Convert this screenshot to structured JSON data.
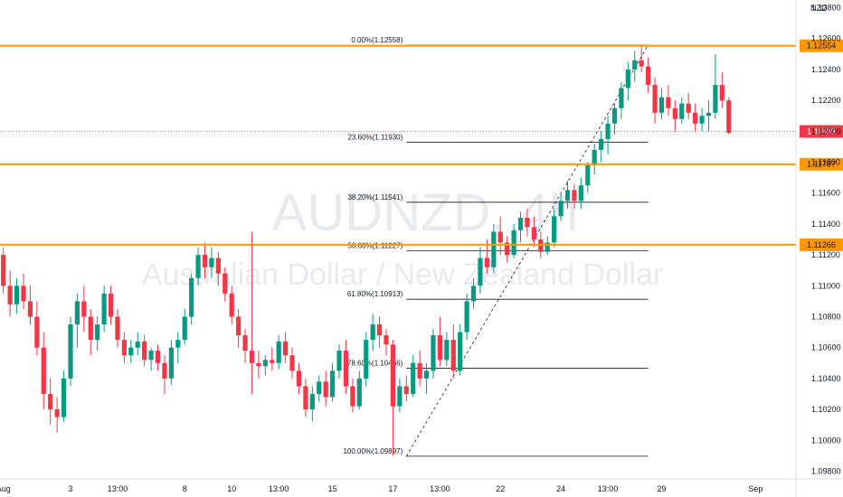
{
  "chart_data": {
    "type": "candlestick",
    "watermark": {
      "symbol": "AUDNZD, 4h",
      "name": "Australian Dollar / New Zealand Dollar"
    },
    "currency_label": "NZD",
    "y_ticks": [
      "1.12800",
      "1.12600",
      "1.12400",
      "1.12200",
      "1.12000",
      "1.11800",
      "1.11600",
      "1.11400",
      "1.11200",
      "1.11000",
      "1.10800",
      "1.10600",
      "1.10400",
      "1.10200",
      "1.10000",
      "1.09800"
    ],
    "y_tick_values": [
      1.128,
      1.126,
      1.124,
      1.122,
      1.12,
      1.118,
      1.116,
      1.114,
      1.112,
      1.11,
      1.108,
      1.106,
      1.104,
      1.102,
      1.1,
      1.098
    ],
    "x_ticks": [
      "Aug",
      "3",
      "13:00",
      "8",
      "10",
      "13:00",
      "15",
      "17",
      "13:00",
      "22",
      "24",
      "13:00",
      "29",
      "Sep"
    ],
    "x_tick_index": [
      0,
      10,
      17,
      27,
      34,
      41,
      49,
      58,
      65,
      74,
      83,
      90,
      98,
      112
    ],
    "ylim": [
      1.0975,
      1.1285
    ],
    "xlim": [
      -0.5,
      118
    ],
    "horizontal_levels": [
      {
        "label": "1.12554",
        "value": 1.12554
      },
      {
        "label": "1.11787",
        "value": 1.11787
      },
      {
        "label": "1.11266",
        "value": 1.11266
      }
    ],
    "last_price": {
      "label": "1.11999",
      "value": 1.11999
    },
    "fibonacci": {
      "x_start_index": 60,
      "x_end_index": 96,
      "levels": [
        {
          "label": "0.00%(1.12558)",
          "value": 1.12558
        },
        {
          "label": "23.60%(1.11930)",
          "value": 1.1193
        },
        {
          "label": "38.20%(1.11541)",
          "value": 1.11541
        },
        {
          "label": "50.00%(1.11227)",
          "value": 1.11227
        },
        {
          "label": "61.80%(1.10913)",
          "value": 1.10913
        },
        {
          "label": "78.60%(1.10466)",
          "value": 1.10466
        },
        {
          "label": "100.00%(1.09897)",
          "value": 1.09897
        }
      ]
    },
    "candles": [
      [
        1.112,
        1.1125,
        1.1095,
        1.11
      ],
      [
        1.11,
        1.111,
        1.108,
        1.1088
      ],
      [
        1.1088,
        1.1105,
        1.1082,
        1.11
      ],
      [
        1.11,
        1.1108,
        1.1085,
        1.109
      ],
      [
        1.109,
        1.11,
        1.1075,
        1.108
      ],
      [
        1.108,
        1.109,
        1.1055,
        1.106
      ],
      [
        1.106,
        1.107,
        1.102,
        1.103
      ],
      [
        1.103,
        1.104,
        1.101,
        1.102
      ],
      [
        1.102,
        1.1028,
        1.1005,
        1.1015
      ],
      [
        1.1015,
        1.1045,
        1.1012,
        1.104
      ],
      [
        1.104,
        1.108,
        1.1035,
        1.1075
      ],
      [
        1.1075,
        1.1095,
        1.106,
        1.109
      ],
      [
        1.109,
        1.11,
        1.107,
        1.108
      ],
      [
        1.108,
        1.1085,
        1.1055,
        1.1065
      ],
      [
        1.1065,
        1.108,
        1.1058,
        1.1075
      ],
      [
        1.1075,
        1.11,
        1.107,
        1.1095
      ],
      [
        1.1095,
        1.11,
        1.1075,
        1.108
      ],
      [
        1.108,
        1.1085,
        1.106,
        1.1065
      ],
      [
        1.1065,
        1.107,
        1.105,
        1.1055
      ],
      [
        1.1055,
        1.1065,
        1.105,
        1.106
      ],
      [
        1.106,
        1.107,
        1.1055,
        1.1064
      ],
      [
        1.1064,
        1.1068,
        1.1048,
        1.1052
      ],
      [
        1.1052,
        1.106,
        1.1045,
        1.1058
      ],
      [
        1.1058,
        1.1062,
        1.1045,
        1.105
      ],
      [
        1.105,
        1.1055,
        1.103,
        1.104
      ],
      [
        1.104,
        1.1065,
        1.1036,
        1.106
      ],
      [
        1.106,
        1.107,
        1.105,
        1.1065
      ],
      [
        1.1065,
        1.1085,
        1.1062,
        1.108
      ],
      [
        1.108,
        1.1108,
        1.1075,
        1.1105
      ],
      [
        1.1105,
        1.1125,
        1.11,
        1.112
      ],
      [
        1.112,
        1.1128,
        1.1105,
        1.1112
      ],
      [
        1.1112,
        1.1125,
        1.1105,
        1.1118
      ],
      [
        1.1118,
        1.1122,
        1.11,
        1.1108
      ],
      [
        1.1108,
        1.1112,
        1.109,
        1.1095
      ],
      [
        1.1095,
        1.11,
        1.1075,
        1.108
      ],
      [
        1.108,
        1.1085,
        1.106,
        1.1068
      ],
      [
        1.1068,
        1.1072,
        1.105,
        1.1058
      ],
      [
        1.1058,
        1.1135,
        1.103,
        1.105
      ],
      [
        1.105,
        1.1058,
        1.104,
        1.1048
      ],
      [
        1.1048,
        1.1055,
        1.1042,
        1.1052
      ],
      [
        1.1052,
        1.106,
        1.1045,
        1.105
      ],
      [
        1.105,
        1.1068,
        1.1046,
        1.1064
      ],
      [
        1.1064,
        1.107,
        1.105,
        1.1055
      ],
      [
        1.1055,
        1.106,
        1.104,
        1.1045
      ],
      [
        1.1045,
        1.105,
        1.103,
        1.1035
      ],
      [
        1.1035,
        1.104,
        1.1015,
        1.102
      ],
      [
        1.102,
        1.1035,
        1.1012,
        1.103
      ],
      [
        1.103,
        1.1042,
        1.1025,
        1.1038
      ],
      [
        1.1038,
        1.1045,
        1.1022,
        1.1028
      ],
      [
        1.1028,
        1.105,
        1.1025,
        1.1045
      ],
      [
        1.1045,
        1.1062,
        1.104,
        1.1058
      ],
      [
        1.1058,
        1.1065,
        1.103,
        1.1035
      ],
      [
        1.1035,
        1.104,
        1.1018,
        1.1022
      ],
      [
        1.1022,
        1.1045,
        1.102,
        1.104
      ],
      [
        1.104,
        1.107,
        1.1035,
        1.1065
      ],
      [
        1.1065,
        1.1082,
        1.1058,
        1.1075
      ],
      [
        1.1075,
        1.108,
        1.106,
        1.1068
      ],
      [
        1.1068,
        1.1072,
        1.1055,
        1.1062
      ],
      [
        1.1062,
        1.1065,
        1.099,
        1.1022
      ],
      [
        1.1022,
        1.104,
        1.1018,
        1.1035
      ],
      [
        1.1035,
        1.1042,
        1.1025,
        1.103
      ],
      [
        1.103,
        1.1055,
        1.1028,
        1.105
      ],
      [
        1.105,
        1.1058,
        1.1035,
        1.104
      ],
      [
        1.104,
        1.105,
        1.103,
        1.1045
      ],
      [
        1.1045,
        1.1072,
        1.104,
        1.1068
      ],
      [
        1.1068,
        1.108,
        1.1048,
        1.1052
      ],
      [
        1.1052,
        1.107,
        1.1048,
        1.1065
      ],
      [
        1.1065,
        1.1075,
        1.104,
        1.1045
      ],
      [
        1.1045,
        1.1075,
        1.1042,
        1.107
      ],
      [
        1.107,
        1.1095,
        1.1065,
        1.109
      ],
      [
        1.109,
        1.1105,
        1.1085,
        1.11
      ],
      [
        1.11,
        1.1125,
        1.1095,
        1.1118
      ],
      [
        1.1118,
        1.113,
        1.1108,
        1.1112
      ],
      [
        1.1112,
        1.114,
        1.1108,
        1.1135
      ],
      [
        1.1135,
        1.1145,
        1.112,
        1.1128
      ],
      [
        1.1128,
        1.1132,
        1.1115,
        1.112
      ],
      [
        1.112,
        1.114,
        1.1118,
        1.1136
      ],
      [
        1.1136,
        1.1148,
        1.1128,
        1.1144
      ],
      [
        1.1144,
        1.115,
        1.1132,
        1.1138
      ],
      [
        1.1138,
        1.1145,
        1.1125,
        1.113
      ],
      [
        1.113,
        1.1135,
        1.1118,
        1.1122
      ],
      [
        1.1122,
        1.1132,
        1.112,
        1.1128
      ],
      [
        1.1128,
        1.115,
        1.1125,
        1.1145
      ],
      [
        1.1145,
        1.116,
        1.1142,
        1.1155
      ],
      [
        1.1155,
        1.1168,
        1.115,
        1.1162
      ],
      [
        1.1162,
        1.1166,
        1.115,
        1.1155
      ],
      [
        1.1155,
        1.117,
        1.115,
        1.1165
      ],
      [
        1.1165,
        1.118,
        1.116,
        1.1178
      ],
      [
        1.1178,
        1.1192,
        1.1172,
        1.1188
      ],
      [
        1.1188,
        1.12,
        1.118,
        1.1195
      ],
      [
        1.1195,
        1.121,
        1.1185,
        1.1205
      ],
      [
        1.1205,
        1.1218,
        1.1198,
        1.1215
      ],
      [
        1.1215,
        1.1232,
        1.1208,
        1.1228
      ],
      [
        1.1228,
        1.1245,
        1.122,
        1.124
      ],
      [
        1.124,
        1.1252,
        1.1232,
        1.1246
      ],
      [
        1.1246,
        1.1256,
        1.1238,
        1.1242
      ],
      [
        1.1242,
        1.1248,
        1.1225,
        1.123
      ],
      [
        1.123,
        1.1235,
        1.1205,
        1.1212
      ],
      [
        1.1212,
        1.1228,
        1.1208,
        1.1222
      ],
      [
        1.1222,
        1.123,
        1.121,
        1.1215
      ],
      [
        1.1215,
        1.122,
        1.12,
        1.1208
      ],
      [
        1.1208,
        1.1222,
        1.1205,
        1.1218
      ],
      [
        1.1218,
        1.1225,
        1.1208,
        1.1212
      ],
      [
        1.1212,
        1.1218,
        1.12,
        1.1205
      ],
      [
        1.1205,
        1.1215,
        1.12,
        1.121
      ],
      [
        1.121,
        1.122,
        1.12,
        1.1212
      ],
      [
        1.1212,
        1.125,
        1.1208,
        1.123
      ],
      [
        1.123,
        1.1238,
        1.1215,
        1.122
      ],
      [
        1.122,
        1.1222,
        1.1198,
        1.1199
      ]
    ],
    "colors": {
      "up": "#089981",
      "down": "#f23645",
      "level_line": "#ff9800",
      "fib_line": "#131722",
      "last_price_badge": "#f23645",
      "level_badge": "#ff9800"
    }
  }
}
